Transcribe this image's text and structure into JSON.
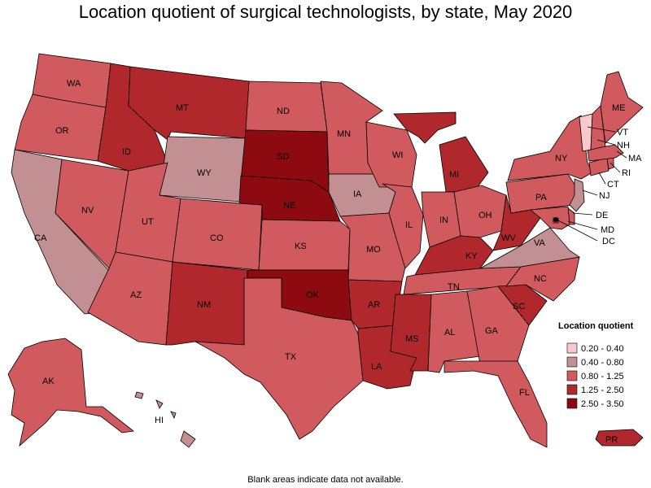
{
  "title": "Location quotient of surgical technologists, by state, May 2020",
  "footnote": "Blank areas indicate data not available.",
  "legend": {
    "title": "Location quotient",
    "classes": [
      {
        "label": "0.20 - 0.40",
        "color": "#f8c8cc"
      },
      {
        "label": "0.40 - 0.80",
        "color": "#c28f92"
      },
      {
        "label": "0.80 - 1.25",
        "color": "#d05a5e"
      },
      {
        "label": "1.25 - 2.50",
        "color": "#b0282c"
      },
      {
        "label": "2.50 - 3.50",
        "color": "#8c0a10"
      }
    ]
  },
  "states": {
    "WA": {
      "label": "WA",
      "class": 2
    },
    "OR": {
      "label": "OR",
      "class": 2
    },
    "CA": {
      "label": "CA",
      "class": 1
    },
    "NV": {
      "label": "NV",
      "class": 2
    },
    "ID": {
      "label": "ID",
      "class": 3
    },
    "MT": {
      "label": "MT",
      "class": 3
    },
    "WY": {
      "label": "WY",
      "class": 1
    },
    "UT": {
      "label": "UT",
      "class": 2
    },
    "AZ": {
      "label": "AZ",
      "class": 2
    },
    "CO": {
      "label": "CO",
      "class": 2
    },
    "NM": {
      "label": "NM",
      "class": 3
    },
    "ND": {
      "label": "ND",
      "class": 2
    },
    "SD": {
      "label": "SD",
      "class": 4
    },
    "NE": {
      "label": "NE",
      "class": 4
    },
    "KS": {
      "label": "KS",
      "class": 2
    },
    "OK": {
      "label": "OK",
      "class": 4
    },
    "TX": {
      "label": "TX",
      "class": 2
    },
    "MN": {
      "label": "MN",
      "class": 2
    },
    "IA": {
      "label": "IA",
      "class": 1
    },
    "MO": {
      "label": "MO",
      "class": 2
    },
    "AR": {
      "label": "AR",
      "class": 3
    },
    "LA": {
      "label": "LA",
      "class": 3
    },
    "WI": {
      "label": "WI",
      "class": 2
    },
    "IL": {
      "label": "IL",
      "class": 2
    },
    "MI": {
      "label": "MI",
      "class": 3
    },
    "IN": {
      "label": "IN",
      "class": 2
    },
    "OH": {
      "label": "OH",
      "class": 2
    },
    "KY": {
      "label": "KY",
      "class": 3
    },
    "TN": {
      "label": "TN",
      "class": 2
    },
    "MS": {
      "label": "MS",
      "class": 3
    },
    "AL": {
      "label": "AL",
      "class": 2
    },
    "GA": {
      "label": "GA",
      "class": 2
    },
    "FL": {
      "label": "FL",
      "class": 2
    },
    "SC": {
      "label": "SC",
      "class": 3
    },
    "NC": {
      "label": "NC",
      "class": 2
    },
    "VA": {
      "label": "VA",
      "class": 1
    },
    "WV": {
      "label": "WV",
      "class": 3
    },
    "PA": {
      "label": "PA",
      "class": 2
    },
    "NY": {
      "label": "NY",
      "class": 2
    },
    "ME": {
      "label": "ME",
      "class": 2
    },
    "VT": {
      "label": "VT",
      "class": 0
    },
    "NH": {
      "label": "NH",
      "class": 2
    },
    "MA": {
      "label": "MA",
      "class": 2
    },
    "RI": {
      "label": "RI",
      "class": 2
    },
    "CT": {
      "label": "CT",
      "class": 2
    },
    "NJ": {
      "label": "NJ",
      "class": 1
    },
    "DE": {
      "label": "DE",
      "class": 2
    },
    "MD": {
      "label": "MD",
      "class": 2
    },
    "DC": {
      "label": "DC",
      "class": 2
    },
    "AK": {
      "label": "AK",
      "class": 2
    },
    "HI": {
      "label": "HI",
      "class": 1
    },
    "PR": {
      "label": "PR",
      "class": 3
    }
  }
}
